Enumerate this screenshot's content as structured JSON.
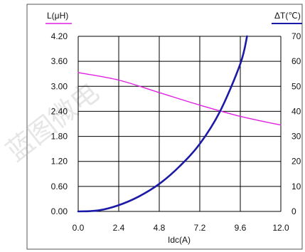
{
  "chart_data": {
    "type": "line",
    "title": "",
    "xlabel": "Idc(A)",
    "xlim": [
      0,
      12
    ],
    "x_ticks": [
      "0.0",
      "2.4",
      "4.8",
      "7.2",
      "9.6",
      "12.0"
    ],
    "y_left": {
      "label": "L(μH)",
      "lim": [
        0,
        4.2
      ],
      "ticks": [
        "0.00",
        "0.60",
        "1.20",
        "1.80",
        "2.40",
        "3.00",
        "3.60",
        "4.20"
      ],
      "legend_color": "#e020e0"
    },
    "y_right": {
      "label": "ΔT(℃)",
      "lim": [
        0,
        70
      ],
      "ticks": [
        "0",
        "10",
        "20",
        "30",
        "40",
        "50",
        "60",
        "70"
      ],
      "legend_color": "#1a1aa6"
    },
    "grid": true,
    "series": [
      {
        "axis": "left",
        "color": "#e020e0",
        "points": [
          [
            0,
            3.33
          ],
          [
            2.4,
            3.15
          ],
          [
            4.8,
            2.85
          ],
          [
            7.2,
            2.55
          ],
          [
            9.6,
            2.28
          ],
          [
            12.0,
            2.07
          ]
        ]
      },
      {
        "axis": "right",
        "color": "#1a1aa6",
        "points": [
          [
            0,
            0
          ],
          [
            1.2,
            0.4
          ],
          [
            2.4,
            2.5
          ],
          [
            3.6,
            6
          ],
          [
            4.8,
            11
          ],
          [
            6.0,
            18
          ],
          [
            7.2,
            27
          ],
          [
            8.4,
            40
          ],
          [
            9.6,
            59
          ],
          [
            10.0,
            70
          ]
        ]
      }
    ]
  },
  "watermark": "蓝图微电"
}
